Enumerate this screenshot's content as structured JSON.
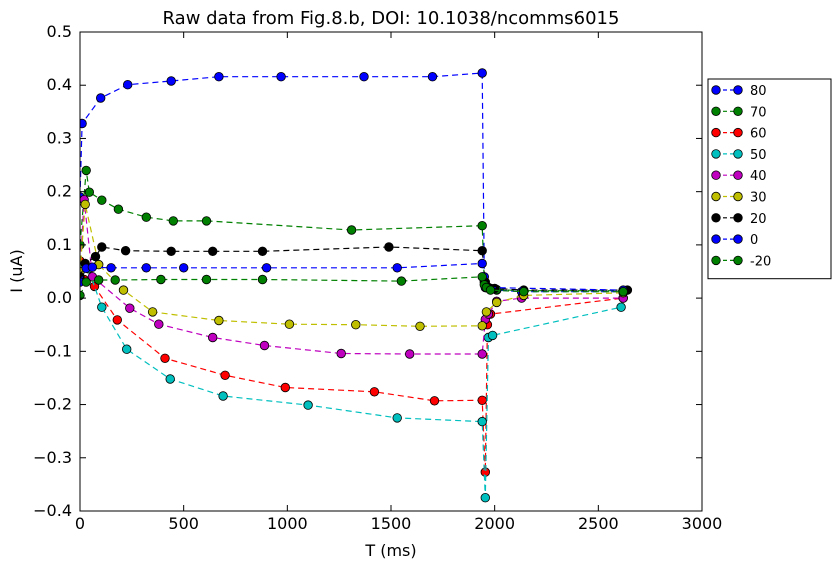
{
  "chart_data": {
    "type": "line",
    "title": "Raw data from Fig.8.b, DOI: 10.1038/ncomms6015",
    "xlabel": "T (ms)",
    "ylabel": "I (uA)",
    "xlim": [
      0,
      3000
    ],
    "ylim": [
      -0.4,
      0.5
    ],
    "xticks": [
      "0",
      "500",
      "1000",
      "1500",
      "2000",
      "2500",
      "3000"
    ],
    "yticks": [
      "−0.4",
      "−0.3",
      "−0.2",
      "−0.1",
      "0.0",
      "0.1",
      "0.2",
      "0.3",
      "0.4",
      "0.5"
    ],
    "grid": false,
    "legend_position": "right",
    "series": [
      {
        "name": "80",
        "color": "#0000ff",
        "x": [
          0,
          10,
          100,
          230,
          440,
          670,
          970,
          1370,
          1700,
          1940,
          1950,
          1960,
          1980,
          2010,
          2130,
          2620
        ],
        "y": [
          0.19,
          0.328,
          0.376,
          0.401,
          0.408,
          0.416,
          0.416,
          0.416,
          0.416,
          0.423,
          0.04,
          0.02,
          0.018,
          0.015,
          0.012,
          0.012
        ]
      },
      {
        "name": "70",
        "color": "#008000",
        "x": [
          0,
          30,
          45,
          105,
          185,
          320,
          450,
          610,
          1310,
          1940,
          1950,
          1960,
          1980,
          2010,
          2140,
          2620
        ],
        "y": [
          0.1,
          0.24,
          0.199,
          0.184,
          0.167,
          0.152,
          0.145,
          0.145,
          0.128,
          0.136,
          0.03,
          0.02,
          0.018,
          0.016,
          0.014,
          0.014
        ]
      },
      {
        "name": "60",
        "color": "#ff0000",
        "x": [
          0,
          20,
          70,
          180,
          410,
          700,
          990,
          1420,
          1710,
          1940,
          1955,
          1965,
          1980,
          2620
        ],
        "y": [
          0.07,
          0.035,
          0.022,
          -0.041,
          -0.113,
          -0.145,
          -0.168,
          -0.176,
          -0.193,
          -0.192,
          -0.327,
          -0.05,
          -0.03,
          0.0
        ]
      },
      {
        "name": "50",
        "color": "#00bfbf",
        "x": [
          0,
          40,
          105,
          225,
          435,
          690,
          1100,
          1530,
          1940,
          1955,
          1970,
          1990,
          2610
        ],
        "y": [
          0.06,
          0.055,
          -0.017,
          -0.096,
          -0.152,
          -0.184,
          -0.201,
          -0.225,
          -0.232,
          -0.375,
          -0.074,
          -0.07,
          -0.017
        ]
      },
      {
        "name": "40",
        "color": "#bf00bf",
        "x": [
          0,
          20,
          60,
          240,
          380,
          640,
          890,
          1260,
          1590,
          1940,
          1955,
          1970,
          2010,
          2130,
          2620
        ],
        "y": [
          0.05,
          0.185,
          0.04,
          -0.019,
          -0.049,
          -0.074,
          -0.089,
          -0.104,
          -0.105,
          -0.105,
          -0.04,
          -0.03,
          -0.006,
          0.0,
          0.0
        ]
      },
      {
        "name": "30",
        "color": "#bfbf00",
        "x": [
          0,
          25,
          90,
          210,
          350,
          670,
          1010,
          1330,
          1640,
          1940,
          1960,
          2010,
          2140,
          2620
        ],
        "y": [
          0.05,
          0.176,
          0.063,
          0.015,
          -0.026,
          -0.042,
          -0.049,
          -0.05,
          -0.053,
          -0.052,
          -0.026,
          -0.008,
          0.005,
          0.01
        ]
      },
      {
        "name": "20",
        "color": "#000000",
        "x": [
          0,
          25,
          75,
          105,
          220,
          440,
          640,
          880,
          1490,
          1940,
          1955,
          1970,
          2000,
          2140,
          2640
        ],
        "y": [
          0.04,
          0.065,
          0.078,
          0.096,
          0.089,
          0.088,
          0.088,
          0.088,
          0.096,
          0.089,
          0.03,
          0.02,
          0.018,
          0.015,
          0.015
        ]
      },
      {
        "name": "0",
        "color": "#0000ff",
        "x": [
          0,
          30,
          60,
          150,
          320,
          500,
          900,
          1530,
          1940,
          1955,
          2620
        ],
        "y": [
          0.03,
          0.056,
          0.058,
          0.057,
          0.057,
          0.057,
          0.057,
          0.057,
          0.065,
          0.02,
          0.015
        ]
      },
      {
        "name": "-20",
        "color": "#008000",
        "x": [
          0,
          30,
          90,
          170,
          390,
          610,
          880,
          1550,
          1940,
          1950,
          1960,
          1980,
          2140,
          2620
        ],
        "y": [
          0.005,
          0.03,
          0.034,
          0.034,
          0.035,
          0.035,
          0.035,
          0.032,
          0.04,
          0.025,
          0.02,
          0.015,
          0.012,
          0.012
        ]
      }
    ]
  }
}
